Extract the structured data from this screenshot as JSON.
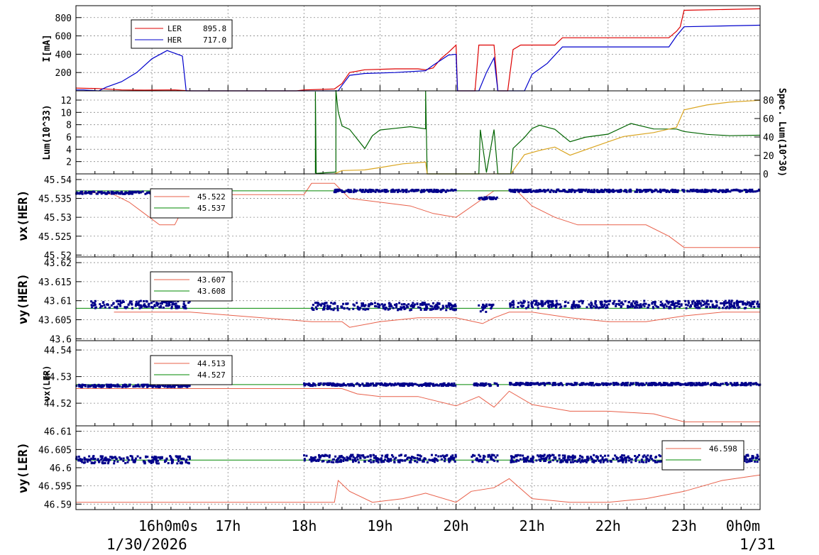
{
  "colors": {
    "ler": "#dd0000",
    "her": "#0000cc",
    "lum": "#006400",
    "spec": "#daa520",
    "tune_ref": "#e8604a",
    "tune_set": "#008800",
    "tune_dots": "#00008b"
  },
  "time_axis": {
    "date_label": "1/30/2026",
    "next_date_label": "1/31",
    "tick_labels": [
      "16h0m0s",
      "17h",
      "18h",
      "19h",
      "20h",
      "21h",
      "22h",
      "23h",
      "0h0m"
    ],
    "tick_hours": [
      16,
      17,
      18,
      19,
      20,
      21,
      22,
      23,
      24
    ],
    "range_hours": [
      15.0,
      24.0
    ]
  },
  "chart_data": [
    {
      "type": "line",
      "ylabel": "I[mA]",
      "yticks": [
        200,
        400,
        600,
        800
      ],
      "ylim": [
        0,
        930
      ],
      "legend": [
        {
          "name": "LER",
          "value": "895.8",
          "color": "#dd0000"
        },
        {
          "name": "HER",
          "value": "717.0",
          "color": "#0000cc"
        }
      ],
      "series": [
        {
          "name": "LER",
          "color": "#dd0000",
          "points": [
            [
              15.0,
              30
            ],
            [
              15.3,
              25
            ],
            [
              15.6,
              10
            ],
            [
              15.9,
              8
            ],
            [
              16.3,
              10
            ],
            [
              16.5,
              0
            ],
            [
              17.9,
              0
            ],
            [
              18.0,
              10
            ],
            [
              18.4,
              20
            ],
            [
              18.5,
              80
            ],
            [
              18.6,
              200
            ],
            [
              18.8,
              230
            ],
            [
              19.2,
              240
            ],
            [
              19.5,
              240
            ],
            [
              19.6,
              230
            ],
            [
              19.7,
              250
            ],
            [
              19.8,
              350
            ],
            [
              19.9,
              420
            ],
            [
              20.0,
              500
            ],
            [
              20.02,
              0
            ],
            [
              20.25,
              0
            ],
            [
              20.3,
              500
            ],
            [
              20.5,
              500
            ],
            [
              20.55,
              0
            ],
            [
              20.68,
              0
            ],
            [
              20.75,
              450
            ],
            [
              20.85,
              500
            ],
            [
              21.1,
              500
            ],
            [
              21.3,
              500
            ],
            [
              21.4,
              580
            ],
            [
              22.8,
              580
            ],
            [
              22.9,
              650
            ],
            [
              22.95,
              700
            ],
            [
              23.0,
              880
            ],
            [
              24.0,
              895.8
            ]
          ]
        },
        {
          "name": "HER",
          "color": "#0000cc",
          "points": [
            [
              15.0,
              10
            ],
            [
              15.1,
              10
            ],
            [
              15.3,
              0
            ],
            [
              15.4,
              40
            ],
            [
              15.6,
              100
            ],
            [
              15.8,
              200
            ],
            [
              16.0,
              350
            ],
            [
              16.2,
              440
            ],
            [
              16.4,
              380
            ],
            [
              16.45,
              0
            ],
            [
              18.4,
              0
            ],
            [
              18.45,
              0
            ],
            [
              18.5,
              60
            ],
            [
              18.6,
              170
            ],
            [
              18.8,
              190
            ],
            [
              19.2,
              200
            ],
            [
              19.6,
              220
            ],
            [
              19.7,
              280
            ],
            [
              19.9,
              390
            ],
            [
              20.0,
              400
            ],
            [
              20.02,
              0
            ],
            [
              20.3,
              0
            ],
            [
              20.4,
              200
            ],
            [
              20.5,
              360
            ],
            [
              20.55,
              0
            ],
            [
              20.9,
              0
            ],
            [
              21.0,
              180
            ],
            [
              21.2,
              300
            ],
            [
              21.4,
              480
            ],
            [
              22.8,
              480
            ],
            [
              22.9,
              600
            ],
            [
              23.0,
              700
            ],
            [
              24.0,
              717
            ]
          ]
        }
      ]
    },
    {
      "type": "line",
      "ylabel": "Lum(10^33)",
      "ylabel_right": "Spec. Lum(10^30)",
      "yticks": [
        2,
        4,
        6,
        8,
        10,
        12
      ],
      "yticks_right": [
        0,
        20,
        40,
        60,
        80
      ],
      "ylim": [
        0,
        13.5
      ],
      "ylim_right": [
        0,
        90
      ],
      "series": [
        {
          "name": "Lum",
          "color": "#006400",
          "points": [
            [
              18.15,
              0
            ],
            [
              18.15,
              13.5
            ],
            [
              18.16,
              0
            ],
            [
              18.42,
              0
            ],
            [
              18.42,
              13.5
            ],
            [
              18.45,
              10
            ],
            [
              18.5,
              8
            ],
            [
              18.6,
              7
            ],
            [
              18.8,
              4
            ],
            [
              18.9,
              6
            ],
            [
              19.0,
              7
            ],
            [
              19.2,
              7.5
            ],
            [
              19.4,
              7.5
            ],
            [
              19.6,
              7.5
            ],
            [
              19.6,
              13.5
            ],
            [
              19.62,
              0
            ],
            [
              20.3,
              0
            ],
            [
              20.32,
              7
            ],
            [
              20.4,
              0
            ],
            [
              20.5,
              7
            ],
            [
              20.55,
              0
            ],
            [
              20.72,
              0
            ],
            [
              20.75,
              4
            ],
            [
              20.9,
              6
            ],
            [
              21.0,
              7.5
            ],
            [
              21.1,
              8
            ],
            [
              21.3,
              7
            ],
            [
              21.5,
              5
            ],
            [
              21.7,
              6
            ],
            [
              22.0,
              6.5
            ],
            [
              22.3,
              8
            ],
            [
              22.6,
              7.5
            ],
            [
              22.9,
              7.5
            ],
            [
              23.0,
              7
            ],
            [
              23.3,
              6.5
            ],
            [
              23.6,
              6.2
            ],
            [
              24.0,
              6
            ]
          ]
        },
        {
          "name": "Spec. Lum",
          "color": "#daa520",
          "points": [
            [
              18.4,
              0
            ],
            [
              18.5,
              3
            ],
            [
              18.8,
              5
            ],
            [
              19.0,
              7
            ],
            [
              19.3,
              10
            ],
            [
              19.6,
              12
            ],
            [
              19.62,
              0
            ],
            [
              20.72,
              0
            ],
            [
              20.9,
              20
            ],
            [
              21.1,
              25
            ],
            [
              21.3,
              30
            ],
            [
              21.5,
              20
            ],
            [
              21.8,
              30
            ],
            [
              22.2,
              40
            ],
            [
              22.6,
              45
            ],
            [
              22.9,
              50
            ],
            [
              23.0,
              70
            ],
            [
              23.3,
              75
            ],
            [
              23.6,
              78
            ],
            [
              24.0,
              80
            ]
          ]
        }
      ]
    },
    {
      "type": "scatter",
      "ylabel": "νx(HER)",
      "yticks": [
        "45.52",
        "45.525",
        "45.53",
        "45.535",
        "45.54"
      ],
      "ylim": [
        45.5195,
        45.5415
      ],
      "legend": [
        {
          "value": "45.522",
          "color": "#e8604a"
        },
        {
          "value": "45.537",
          "color": "#008800"
        }
      ],
      "set_value": 45.537,
      "ref_points": [
        [
          15.0,
          45.5365
        ],
        [
          15.3,
          45.5365
        ],
        [
          15.5,
          45.536
        ],
        [
          15.7,
          45.534
        ],
        [
          15.9,
          45.531
        ],
        [
          16.1,
          45.528
        ],
        [
          16.3,
          45.528
        ],
        [
          16.5,
          45.536
        ],
        [
          18.0,
          45.536
        ],
        [
          18.1,
          45.539
        ],
        [
          18.4,
          45.539
        ],
        [
          18.6,
          45.535
        ],
        [
          19.0,
          45.534
        ],
        [
          19.4,
          45.533
        ],
        [
          19.7,
          45.531
        ],
        [
          20.0,
          45.53
        ],
        [
          20.5,
          45.537
        ],
        [
          20.8,
          45.537
        ],
        [
          21.0,
          45.533
        ],
        [
          21.3,
          45.53
        ],
        [
          21.6,
          45.528
        ],
        [
          22.0,
          45.528
        ],
        [
          22.5,
          45.528
        ],
        [
          22.8,
          45.525
        ],
        [
          23.0,
          45.522
        ],
        [
          24.0,
          45.522
        ]
      ],
      "dots_ranges": [
        [
          15.0,
          16.5,
          45.5365
        ],
        [
          18.4,
          20.0,
          45.537
        ],
        [
          20.3,
          20.55,
          45.535
        ],
        [
          20.7,
          24.0,
          45.537
        ]
      ]
    },
    {
      "type": "scatter",
      "ylabel": "νy(HER)",
      "yticks": [
        "43.6",
        "43.605",
        "43.61",
        "43.615",
        "43.62"
      ],
      "ylim": [
        43.5995,
        43.6215
      ],
      "legend": [
        {
          "value": "43.607",
          "color": "#e8604a"
        },
        {
          "value": "43.608",
          "color": "#008800"
        }
      ],
      "set_value": 43.608,
      "ref_points": [
        [
          15.5,
          43.607
        ],
        [
          16.5,
          43.607
        ],
        [
          18.1,
          43.6045
        ],
        [
          18.5,
          43.6045
        ],
        [
          18.6,
          43.603
        ],
        [
          19.0,
          43.6045
        ],
        [
          19.5,
          43.6055
        ],
        [
          20.0,
          43.6055
        ],
        [
          20.35,
          43.604
        ],
        [
          20.5,
          43.6055
        ],
        [
          20.7,
          43.607
        ],
        [
          21.0,
          43.607
        ],
        [
          21.5,
          43.6055
        ],
        [
          22.0,
          43.6045
        ],
        [
          22.5,
          43.6045
        ],
        [
          23.0,
          43.606
        ],
        [
          23.5,
          43.607
        ],
        [
          24.0,
          43.607
        ]
      ],
      "dots_ranges": [
        [
          15.2,
          16.5,
          43.609
        ],
        [
          18.1,
          20.0,
          43.6085
        ],
        [
          20.3,
          20.5,
          43.608
        ],
        [
          20.7,
          24.0,
          43.609
        ]
      ]
    },
    {
      "type": "scatter",
      "ylabel": "νx(LER)",
      "yticks": [
        "44.52",
        "44.53",
        "44.54"
      ],
      "ylim": [
        44.5115,
        44.5435
      ],
      "legend": [
        {
          "value": "44.513",
          "color": "#e8604a"
        },
        {
          "value": "44.527",
          "color": "#008800"
        }
      ],
      "set_value": 44.527,
      "ref_points": [
        [
          15.0,
          44.5255
        ],
        [
          18.5,
          44.5255
        ],
        [
          18.7,
          44.5235
        ],
        [
          19.0,
          44.5225
        ],
        [
          19.5,
          44.5225
        ],
        [
          20.0,
          44.519
        ],
        [
          20.3,
          44.5225
        ],
        [
          20.5,
          44.5185
        ],
        [
          20.7,
          44.5245
        ],
        [
          21.0,
          44.5195
        ],
        [
          21.5,
          44.517
        ],
        [
          22.0,
          44.517
        ],
        [
          22.6,
          44.516
        ],
        [
          23.0,
          44.513
        ],
        [
          24.0,
          44.513
        ]
      ],
      "dots_ranges": [
        [
          15.0,
          16.5,
          44.5265
        ],
        [
          18.0,
          20.0,
          44.527
        ],
        [
          20.2,
          20.55,
          44.527
        ],
        [
          20.7,
          24.0,
          44.5272
        ]
      ]
    },
    {
      "type": "scatter",
      "ylabel": "νy(LER)",
      "yticks": [
        "46.59",
        "46.595",
        "46.6",
        "46.605",
        "46.61"
      ],
      "ylim": [
        46.5885,
        46.6115
      ],
      "legend": [
        {
          "value": "46.598",
          "color": "#e8604a"
        },
        {
          "value": "",
          "color": "#008800"
        }
      ],
      "set_value": 46.6021,
      "ref_points": [
        [
          15.0,
          46.5905
        ],
        [
          18.4,
          46.5905
        ],
        [
          18.45,
          46.5965
        ],
        [
          18.6,
          46.5935
        ],
        [
          18.9,
          46.5905
        ],
        [
          19.3,
          46.5915
        ],
        [
          19.6,
          46.593
        ],
        [
          20.0,
          46.5905
        ],
        [
          20.2,
          46.5935
        ],
        [
          20.5,
          46.5945
        ],
        [
          20.7,
          46.597
        ],
        [
          21.0,
          46.5915
        ],
        [
          21.5,
          46.5905
        ],
        [
          22.0,
          46.5905
        ],
        [
          22.5,
          46.5915
        ],
        [
          23.0,
          46.5935
        ],
        [
          23.5,
          46.5965
        ],
        [
          24.0,
          46.598
        ]
      ],
      "dots_ranges": [
        [
          15.0,
          16.5,
          46.6022
        ],
        [
          18.0,
          20.0,
          46.6025
        ],
        [
          20.2,
          20.55,
          46.6025
        ],
        [
          20.7,
          24.0,
          46.6025
        ]
      ]
    }
  ]
}
